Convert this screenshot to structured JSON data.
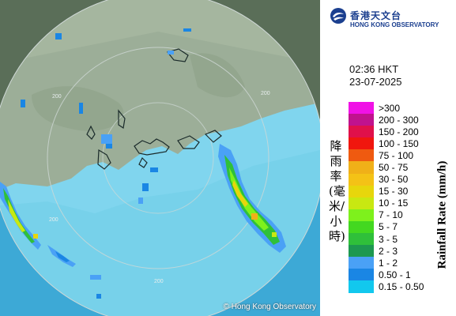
{
  "map": {
    "copyright": "© Hong Kong Observatory",
    "range_labels": [
      "200",
      "200",
      "200",
      "200",
      "200"
    ]
  },
  "logo": {
    "name_cn": "香港天文台",
    "name_en": "HONG KONG OBSERVATORY"
  },
  "timestamp": {
    "time": "02:36 HKT",
    "date": "23-07-2025"
  },
  "legend": {
    "title_cn": "降雨率(毫米/小時)",
    "title_en": "Rainfall Rate (mm/h)",
    "items": [
      {
        "label": ">300",
        "color": "#f012e6"
      },
      {
        "label": "200 - 300",
        "color": "#c0128e"
      },
      {
        "label": "150 - 200",
        "color": "#e0104a"
      },
      {
        "label": "100 - 150",
        "color": "#f0160e"
      },
      {
        "label": "75 - 100",
        "color": "#ef5a10"
      },
      {
        "label": "50 - 75",
        "color": "#f0b018"
      },
      {
        "label": "30 - 50",
        "color": "#f4c216"
      },
      {
        "label": "15 - 30",
        "color": "#e7d60c"
      },
      {
        "label": "10 - 15",
        "color": "#c8e812"
      },
      {
        "label": "7 - 10",
        "color": "#7ef11c"
      },
      {
        "label": "5 - 7",
        "color": "#43d820"
      },
      {
        "label": "3 - 5",
        "color": "#2fc03a"
      },
      {
        "label": "2 - 3",
        "color": "#1d9850"
      },
      {
        "label": "1 - 2",
        "color": "#4aa1f6"
      },
      {
        "label": "0.50 - 1",
        "color": "#1a86e4"
      },
      {
        "label": "0.15 - 0.50",
        "color": "#12c8ee"
      }
    ]
  }
}
